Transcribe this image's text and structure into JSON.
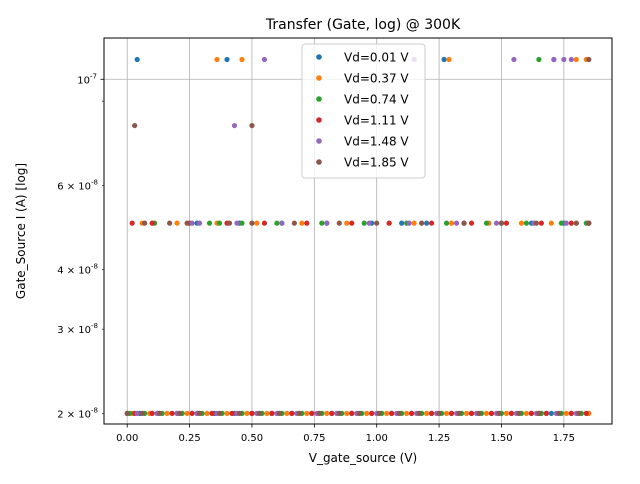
{
  "chart_data": {
    "type": "scatter",
    "title": "Transfer (Gate, log) @ 300K",
    "xlabel": "V_gate_source (V)",
    "ylabel": "Gate_Source I (A) [log]",
    "xlim": [
      -0.093,
      1.943
    ],
    "ylim": [
      1.9e-08,
      1.22e-07
    ],
    "yscale": "log",
    "grid": true,
    "legend_position": "top-center",
    "x_ticks": [
      {
        "value": 0.0,
        "label": "0.00"
      },
      {
        "value": 0.25,
        "label": "0.25"
      },
      {
        "value": 0.5,
        "label": "0.50"
      },
      {
        "value": 0.75,
        "label": "0.75"
      },
      {
        "value": 1.0,
        "label": "1.00"
      },
      {
        "value": 1.25,
        "label": "1.25"
      },
      {
        "value": 1.5,
        "label": "1.50"
      },
      {
        "value": 1.75,
        "label": "1.75"
      }
    ],
    "y_major_ticks": [
      {
        "value": 1e-07,
        "label": "10^-7"
      }
    ],
    "y_minor_ticks": [
      {
        "value": 2e-08,
        "label": "2 × 10^-8"
      },
      {
        "value": 3e-08,
        "label": "3 × 10^-8"
      },
      {
        "value": 4e-08,
        "label": "4 × 10^-8"
      },
      {
        "value": 6e-08,
        "label": "6 × 10^-8"
      },
      {
        "value": 9e-08,
        "label": ""
      }
    ],
    "series": [
      {
        "name": "Vd=0.01 V",
        "color": "#1f77b4",
        "levels": [
          {
            "y": 2e-08,
            "x": [
              0.0,
              0.05,
              0.12,
              0.2,
              0.28,
              0.35,
              0.43,
              0.5,
              0.58,
              0.66,
              0.74,
              0.82,
              0.9,
              0.98,
              1.06,
              1.14,
              1.22,
              1.3,
              1.38,
              1.46,
              1.54,
              1.62,
              1.7,
              1.78,
              1.85
            ]
          },
          {
            "y": 5e-08,
            "x": [
              0.28,
              0.45,
              0.62,
              0.8,
              0.98,
              1.1,
              1.2,
              1.35,
              1.5,
              1.62,
              1.75,
              1.85
            ]
          },
          {
            "y": 1.1e-07,
            "x": [
              0.04,
              0.4,
              1.27,
              1.71
            ]
          }
        ]
      },
      {
        "name": "Vd=0.37 V",
        "color": "#ff7f0e",
        "levels": [
          {
            "y": 2e-08,
            "x": [
              0.02,
              0.09,
              0.16,
              0.24,
              0.32,
              0.4,
              0.48,
              0.56,
              0.64,
              0.72,
              0.8,
              0.88,
              0.96,
              1.04,
              1.12,
              1.2,
              1.28,
              1.36,
              1.44,
              1.52,
              1.6,
              1.68,
              1.76,
              1.85
            ]
          },
          {
            "y": 5e-08,
            "x": [
              0.06,
              0.2,
              0.36,
              0.52,
              0.7,
              0.88,
              1.05,
              1.15,
              1.3,
              1.45,
              1.58,
              1.7,
              1.8
            ]
          },
          {
            "y": 1.1e-07,
            "x": [
              0.36,
              0.46,
              1.29,
              1.8,
              1.84
            ]
          }
        ]
      },
      {
        "name": "Vd=0.74 V",
        "color": "#2ca02c",
        "levels": [
          {
            "y": 2e-08,
            "x": [
              0.01,
              0.07,
              0.14,
              0.22,
              0.3,
              0.38,
              0.46,
              0.54,
              0.62,
              0.7,
              0.78,
              0.86,
              0.94,
              1.02,
              1.1,
              1.18,
              1.26,
              1.34,
              1.42,
              1.5,
              1.58,
              1.66,
              1.74,
              1.82
            ]
          },
          {
            "y": 5e-08,
            "x": [
              0.11,
              0.33,
              0.37,
              0.46,
              0.6,
              0.78,
              0.95,
              1.12,
              1.28,
              1.44,
              1.6,
              1.74,
              1.84
            ]
          },
          {
            "y": 1.1e-07,
            "x": [
              1.65
            ]
          }
        ]
      },
      {
        "name": "Vd=1.11 V",
        "color": "#d62728",
        "levels": [
          {
            "y": 2e-08,
            "x": [
              0.03,
              0.1,
              0.18,
              0.26,
              0.34,
              0.42,
              0.5,
              0.58,
              0.66,
              0.74,
              0.82,
              0.9,
              0.98,
              1.06,
              1.14,
              1.22,
              1.3,
              1.38,
              1.46,
              1.54,
              1.62,
              1.65,
              1.68,
              1.78,
              1.84
            ]
          },
          {
            "y": 5e-08,
            "x": [
              0.02,
              0.1,
              0.25,
              0.4,
              0.55,
              0.72,
              0.9,
              1.05,
              1.22,
              1.38,
              1.52,
              1.66,
              1.78,
              1.85
            ]
          }
        ]
      },
      {
        "name": "Vd=1.48 V",
        "color": "#9467bd",
        "levels": [
          {
            "y": 2e-08,
            "x": [
              0.04,
              0.12,
              0.2,
              0.28,
              0.36,
              0.44,
              0.52,
              0.6,
              0.68,
              0.76,
              0.84,
              0.92,
              1.0,
              1.08,
              1.16,
              1.24,
              1.32,
              1.4,
              1.48,
              1.56,
              1.64,
              1.72,
              1.8
            ]
          },
          {
            "y": 5e-08,
            "x": [
              0.26,
              0.29,
              0.44,
              0.62,
              0.8,
              0.97,
              1.13,
              1.32,
              1.48,
              1.63,
              1.76
            ]
          },
          {
            "y": 8e-08,
            "x": [
              0.43
            ]
          },
          {
            "y": 1.1e-07,
            "x": [
              0.55,
              1.15,
              1.55,
              1.71,
              1.75,
              1.78
            ]
          }
        ]
      },
      {
        "name": "Vd=1.85 V",
        "color": "#8c564b",
        "levels": [
          {
            "y": 2e-08,
            "x": [
              0.0,
              0.06,
              0.13,
              0.21,
              0.29,
              0.37,
              0.45,
              0.53,
              0.61,
              0.69,
              0.77,
              0.85,
              0.93,
              1.01,
              1.09,
              1.17,
              1.25,
              1.33,
              1.41,
              1.49,
              1.57,
              1.65,
              1.73,
              1.81
            ]
          },
          {
            "y": 5e-08,
            "x": [
              0.07,
              0.17,
              0.24,
              0.41,
              0.5,
              0.67,
              0.85,
              1.0,
              1.18,
              1.35,
              1.5,
              1.64,
              1.8,
              1.85
            ]
          },
          {
            "y": 8e-08,
            "x": [
              0.03,
              0.5
            ]
          },
          {
            "y": 1.1e-07,
            "x": [
              1.85
            ]
          }
        ]
      }
    ]
  }
}
